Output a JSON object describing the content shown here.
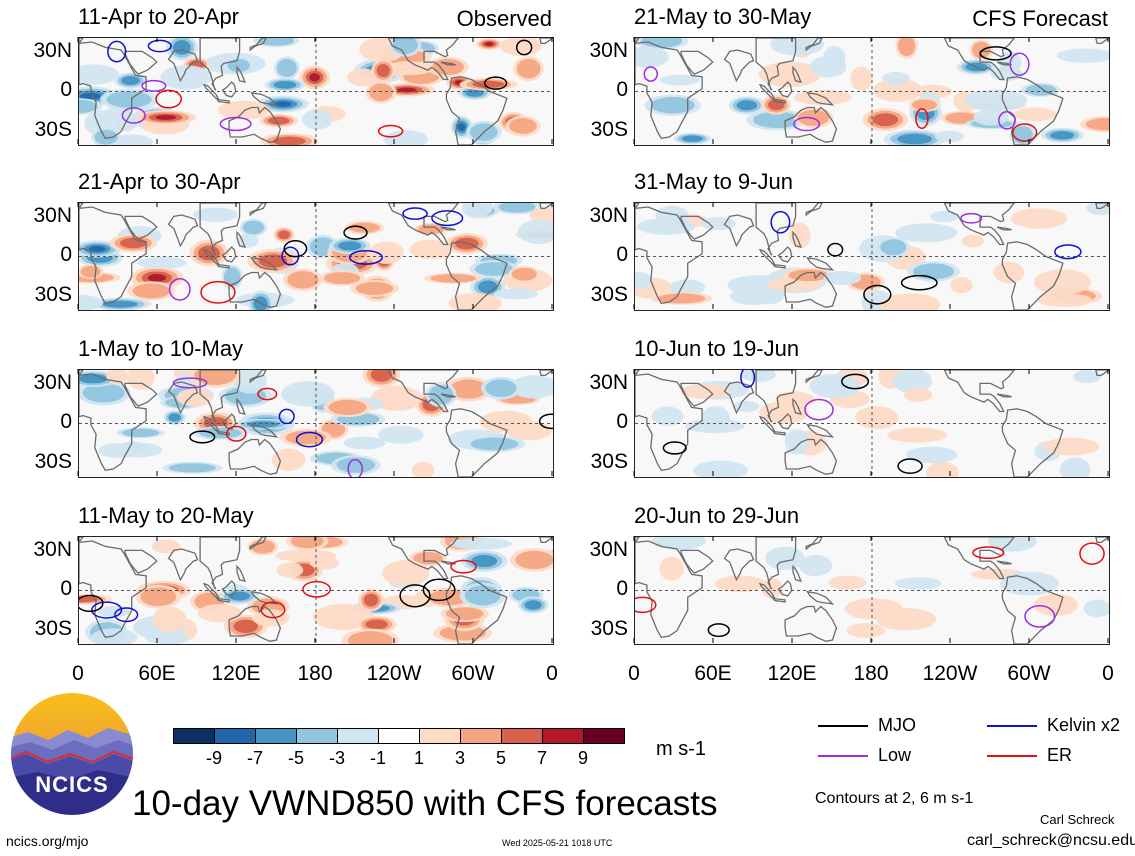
{
  "figure": {
    "title": "10-day VWND850 with CFS forecasts",
    "observed_label": "Observed",
    "forecast_label": "CFS Forecast",
    "units": "m s-1",
    "contour_note": "Contours at 2, 6 m s-1",
    "author": "Carl Schreck",
    "email": "carl_schreck@ncsu.edu",
    "website": "ncics.org/mjo",
    "timestamp": "Wed 2025-05-21 1018 UTC",
    "logo_text": "NCICS"
  },
  "chart_data": {
    "type": "heatmap",
    "variable": "VWND850",
    "units": "m s-1",
    "x_ticks": [
      "0",
      "60E",
      "120E",
      "180",
      "120W",
      "60W",
      "0"
    ],
    "y_ticks": [
      "30N",
      "0",
      "30S"
    ],
    "colorbar": {
      "levels": [
        "-9",
        "-7",
        "-5",
        "-3",
        "-1",
        "1",
        "3",
        "5",
        "7",
        "9"
      ],
      "colors": [
        "#0b2f5e",
        "#2166ac",
        "#4393c3",
        "#92c5de",
        "#d1e5f0",
        "#ffffff",
        "#fddbc7",
        "#f4a582",
        "#d6604d",
        "#b2182b",
        "#67001f"
      ]
    },
    "contour_levels": [
      2,
      6
    ],
    "legend": [
      {
        "name": "MJO",
        "color": "#000000"
      },
      {
        "name": "Kelvin x2",
        "color": "#1010d0"
      },
      {
        "name": "Low",
        "color": "#9b30e0"
      },
      {
        "name": "ER",
        "color": "#e01010"
      }
    ],
    "panels": [
      {
        "period": "11-Apr to 20-Apr",
        "type": "observed",
        "intensity": 1.0
      },
      {
        "period": "21-Apr to 30-Apr",
        "type": "observed",
        "intensity": 0.9
      },
      {
        "period": "1-May to 10-May",
        "type": "observed",
        "intensity": 0.8
      },
      {
        "period": "11-May to 20-May",
        "type": "observed",
        "intensity": 0.8
      },
      {
        "period": "21-May to 30-May",
        "type": "forecast",
        "intensity": 0.7
      },
      {
        "period": "31-May to 9-Jun",
        "type": "forecast",
        "intensity": 0.45
      },
      {
        "period": "10-Jun to 19-Jun",
        "type": "forecast",
        "intensity": 0.3
      },
      {
        "period": "20-Jun to 29-Jun",
        "type": "forecast",
        "intensity": 0.25
      }
    ]
  }
}
